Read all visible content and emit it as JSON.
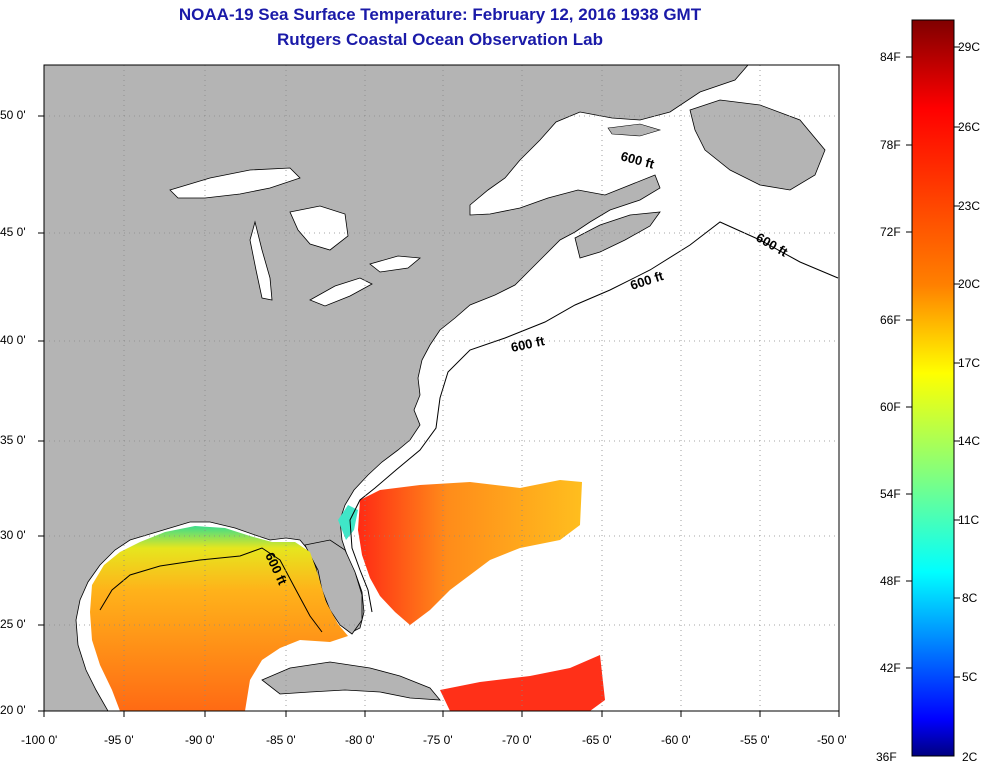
{
  "header": {
    "title": "NOAA-19 Sea Surface Temperature:  February 12, 2016 1938 GMT",
    "subtitle": "Rutgers Coastal Ocean Observation Lab"
  },
  "axes": {
    "lat_labels": [
      "50 0'",
      "45 0'",
      "40 0'",
      "35 0'",
      "30 0'",
      "25 0'",
      "20 0'"
    ],
    "lon_labels": [
      "-100 0'",
      "-95 0'",
      "-90 0'",
      "-85 0'",
      "-80 0'",
      "-75 0'",
      "-70 0'",
      "-65 0'",
      "-60 0'",
      "-55 0'",
      "-50 0'"
    ]
  },
  "contour_label": "600 ft",
  "colorbar": {
    "fahrenheit": [
      "84F",
      "78F",
      "72F",
      "66F",
      "60F",
      "54F",
      "48F",
      "42F",
      "36F"
    ],
    "celsius": [
      "29C",
      "26C",
      "23C",
      "20C",
      "17C",
      "14C",
      "11C",
      "8C",
      "5C",
      "2C"
    ],
    "colors": [
      "#800000",
      "#ff0000",
      "#ff8000",
      "#ffff00",
      "#80ff80",
      "#00ffff",
      "#0080ff",
      "#0000ff",
      "#000080"
    ]
  },
  "map_colors": {
    "land": "#b4b4b4",
    "ocean_no_data": "#ffffff",
    "sst_warm": "#ff2020",
    "sst_mid": "#ff8c1a",
    "sst_cool": "#ffd21a",
    "sst_cold": "#3cdc8c"
  }
}
